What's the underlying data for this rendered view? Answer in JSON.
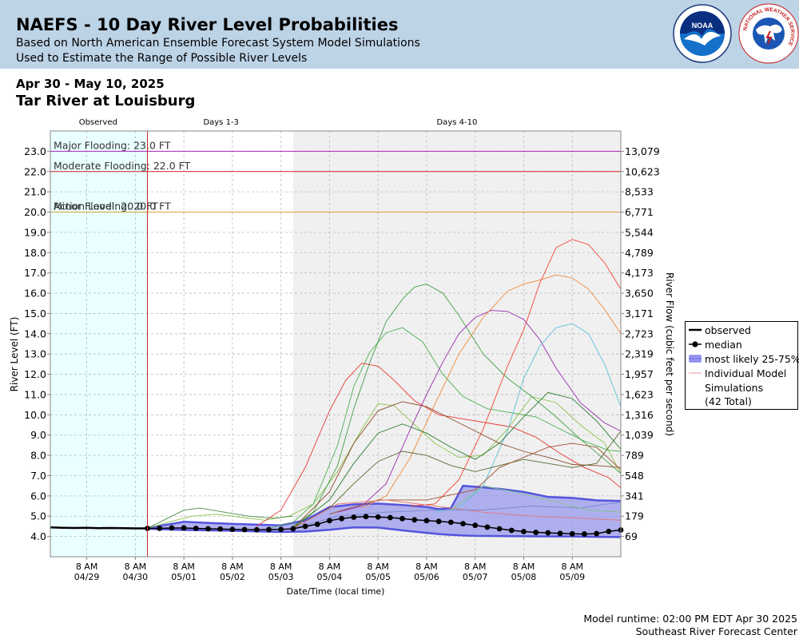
{
  "header": {
    "title": "NAEFS - 10 Day River Level Probabilities",
    "subtitle1": "Based on North American Ensemble Forecast System Model Simulations",
    "subtitle2": "Used to Estimate the Range of Possible River Levels",
    "noaa_logo_text": "NOAA",
    "nws_logo_text": "NATIONAL WEATHER SERVICE"
  },
  "date_range": "Apr 30 - May 10, 2025",
  "station": "Tar River at Louisburg",
  "footer": {
    "runtime": "Model runtime: 02:00 PM EDT Apr 30 2025",
    "center": "Southeast River Forecast Center"
  },
  "legend": {
    "observed": "observed",
    "median": "median",
    "likely": "most likely 25-75%",
    "individual": "Individual Model",
    "individual2": "Simulations",
    "total": "(42 Total)"
  },
  "colors": {
    "header_bg": "#bdd3e6",
    "observed_bg": "#eaffff",
    "days4_10_bg": "#f0f0f0",
    "major": "#aa22bb",
    "moderate": "#d02020",
    "action": "#d8a040",
    "band_fill": "#9999ee",
    "band_edge": "#6666ee"
  },
  "chart_data": {
    "type": "line",
    "title": "Tar River at Louisburg",
    "xlabel": "Date/Time (local time)",
    "ylabel": "River Level (FT)",
    "ylabel_right": "River Flow (cubic feet per second)",
    "ylim": [
      3.0,
      24.0
    ],
    "x_range": [
      "04/28 14:00",
      "05/10 08:00"
    ],
    "section_labels": [
      "Observed",
      "Days 1-3",
      "Days 4-10"
    ],
    "section_starts": [
      "04/28 14:00",
      "04/30 14:00",
      "05/03 14:00"
    ],
    "y_ticks": [
      4,
      5,
      6,
      7,
      8,
      9,
      10,
      11,
      12,
      13,
      14,
      15,
      16,
      17,
      18,
      19,
      20,
      21,
      22,
      23
    ],
    "y_tick_labels": [
      "4.0",
      "5.0",
      "6.0",
      "7.0",
      "8.0",
      "9.0",
      "10.0",
      "11.0",
      "12.0",
      "13.0",
      "14.0",
      "15.0",
      "16.0",
      "17.0",
      "18.0",
      "19.0",
      "20.0",
      "21.0",
      "22.0",
      "23.0"
    ],
    "flow_tick_labels": [
      "69",
      "179",
      "341",
      "548",
      "789",
      "1,039",
      "1,316",
      "1,623",
      "1,957",
      "2,319",
      "2,723",
      "3,171",
      "3,650",
      "4,173",
      "4,789",
      "5,544",
      "6,771",
      "8,533",
      "10,623",
      "13,079"
    ],
    "x_ticks": [
      {
        "t": "04/29 08:00",
        "label1": "8 AM",
        "label2": "04/29"
      },
      {
        "t": "04/30 08:00",
        "label1": "8 AM",
        "label2": "04/30"
      },
      {
        "t": "05/01 08:00",
        "label1": "8 AM",
        "label2": "05/01"
      },
      {
        "t": "05/02 08:00",
        "label1": "8 AM",
        "label2": "05/02"
      },
      {
        "t": "05/03 08:00",
        "label1": "8 AM",
        "label2": "05/03"
      },
      {
        "t": "05/04 08:00",
        "label1": "8 AM",
        "label2": "05/04"
      },
      {
        "t": "05/05 08:00",
        "label1": "8 AM",
        "label2": "05/05"
      },
      {
        "t": "05/06 08:00",
        "label1": "8 AM",
        "label2": "05/06"
      },
      {
        "t": "05/07 08:00",
        "label1": "8 AM",
        "label2": "05/07"
      },
      {
        "t": "05/08 08:00",
        "label1": "8 AM",
        "label2": "05/08"
      },
      {
        "t": "05/09 08:00",
        "label1": "8 AM",
        "label2": "05/09"
      }
    ],
    "thresholds": [
      {
        "name": "Major Flooding: 23.0 FT",
        "value": 23.0,
        "color": "#aa22bb"
      },
      {
        "name": "Moderate Flooding: 22.0 FT",
        "value": 22.0,
        "color": "#d02020"
      },
      {
        "name": "Minor Flooding: 20.0 FT",
        "value": 20.0,
        "color": "#d8a040"
      },
      {
        "name": "Action Level: 20.0 FT",
        "value": 20.0,
        "color": "#d8a040"
      }
    ],
    "observed": {
      "name": "observed",
      "x": [
        "04/28 14:00",
        "04/28 20:00",
        "04/29 02:00",
        "04/29 08:00",
        "04/29 14:00",
        "04/29 20:00",
        "04/30 02:00",
        "04/30 08:00",
        "04/30 14:00"
      ],
      "y": [
        4.45,
        4.43,
        4.42,
        4.43,
        4.41,
        4.42,
        4.41,
        4.4,
        4.4
      ]
    },
    "median": {
      "name": "median",
      "x": [
        "04/30 14:00",
        "04/30 20:00",
        "05/01 02:00",
        "05/01 08:00",
        "05/01 14:00",
        "05/01 20:00",
        "05/02 02:00",
        "05/02 08:00",
        "05/02 14:00",
        "05/02 20:00",
        "05/03 02:00",
        "05/03 08:00",
        "05/03 14:00",
        "05/03 20:00",
        "05/04 02:00",
        "05/04 08:00",
        "05/04 14:00",
        "05/04 20:00",
        "05/05 02:00",
        "05/05 08:00",
        "05/05 14:00",
        "05/05 20:00",
        "05/06 02:00",
        "05/06 08:00",
        "05/06 14:00",
        "05/06 20:00",
        "05/07 02:00",
        "05/07 08:00",
        "05/07 14:00",
        "05/07 20:00",
        "05/08 02:00",
        "05/08 08:00",
        "05/08 14:00",
        "05/08 20:00",
        "05/09 02:00",
        "05/09 08:00",
        "05/09 14:00",
        "05/09 20:00",
        "05/10 02:00",
        "05/10 08:00"
      ],
      "y": [
        4.4,
        4.4,
        4.42,
        4.42,
        4.4,
        4.38,
        4.37,
        4.35,
        4.34,
        4.33,
        4.34,
        4.35,
        4.38,
        4.5,
        4.6,
        4.78,
        4.88,
        4.95,
        4.98,
        4.96,
        4.93,
        4.88,
        4.82,
        4.78,
        4.74,
        4.7,
        4.63,
        4.55,
        4.46,
        4.38,
        4.3,
        4.24,
        4.2,
        4.18,
        4.15,
        4.13,
        4.12,
        4.14,
        4.25,
        4.32
      ]
    },
    "likely_band": {
      "name": "most likely 25-75%",
      "x": [
        "04/30 14:00",
        "05/01 08:00",
        "05/02 08:00",
        "05/03 08:00",
        "05/03 20:00",
        "05/04 08:00",
        "05/04 20:00",
        "05/05 08:00",
        "05/05 20:00",
        "05/06 08:00",
        "05/06 14:00",
        "05/06 20:00",
        "05/07 02:00",
        "05/07 08:00",
        "05/07 20:00",
        "05/08 08:00",
        "05/08 20:00",
        "05/09 08:00",
        "05/09 20:00",
        "05/10 08:00"
      ],
      "upper": [
        4.42,
        4.72,
        4.62,
        4.55,
        4.8,
        5.45,
        5.58,
        5.62,
        5.55,
        5.45,
        5.35,
        5.4,
        6.5,
        6.45,
        6.35,
        6.2,
        5.95,
        5.9,
        5.78,
        5.75
      ],
      "lower": [
        4.38,
        4.32,
        4.28,
        4.22,
        4.24,
        4.33,
        4.45,
        4.44,
        4.3,
        4.18,
        4.12,
        4.08,
        4.05,
        4.03,
        4.02,
        4.01,
        4.0,
        4.0,
        3.98,
        3.97
      ]
    },
    "members_total": 42,
    "members": [
      {
        "color": "#8bc34a",
        "x": [
          "04/30 14:00",
          "05/01 00:00",
          "05/01 12:00",
          "05/02 00:00",
          "05/02 12:00",
          "05/03 00:00",
          "05/03 12:00",
          "05/04 00:00",
          "05/04 12:00",
          "05/05 00:00",
          "05/05 08:00",
          "05/05 16:00",
          "05/06 00:00",
          "05/06 12:00",
          "05/07 00:00",
          "05/07 12:00",
          "05/08 00:00",
          "05/08 12:00",
          "05/09 00:00",
          "05/09 12:00",
          "05/10 00:00",
          "05/10 08:00"
        ],
        "y": [
          4.4,
          4.7,
          5.0,
          5.1,
          4.95,
          4.8,
          5.0,
          5.6,
          7.2,
          9.3,
          10.55,
          10.45,
          9.7,
          8.6,
          7.9,
          8.0,
          9.3,
          10.9,
          10.6,
          9.5,
          8.6,
          7.1
        ]
      },
      {
        "color": "#4caf50",
        "x": [
          "05/03 02:00",
          "05/03 14:00",
          "05/04 00:00",
          "05/04 12:00",
          "05/04 20:00",
          "05/05 04:00",
          "05/05 12:00",
          "05/05 20:00",
          "05/06 06:00",
          "05/06 16:00",
          "05/07 02:00",
          "05/07 14:00",
          "05/08 02:00",
          "05/08 14:00",
          "05/09 02:00",
          "05/09 14:00",
          "05/10 02:00",
          "05/10 08:00"
        ],
        "y": [
          4.4,
          4.7,
          5.6,
          8.5,
          11.4,
          13.1,
          14.05,
          14.3,
          13.6,
          12.0,
          10.9,
          10.3,
          10.1,
          9.9,
          9.3,
          8.7,
          8.25,
          8.2
        ]
      },
      {
        "color": "#e53935",
        "x": [
          "05/02 20:00",
          "05/03 08:00",
          "05/03 20:00",
          "05/04 08:00",
          "05/04 16:00",
          "05/05 00:00",
          "05/05 08:00",
          "05/05 16:00",
          "05/06 02:00",
          "05/06 14:00",
          "05/07 02:00",
          "05/07 14:00",
          "05/08 02:00",
          "05/08 14:00",
          "05/09 02:00",
          "05/09 14:00",
          "05/10 02:00",
          "05/10 08:00"
        ],
        "y": [
          4.5,
          5.3,
          7.4,
          10.2,
          11.7,
          12.55,
          12.4,
          11.7,
          10.7,
          10.0,
          9.8,
          9.6,
          9.4,
          8.9,
          8.1,
          7.4,
          6.9,
          6.4
        ]
      },
      {
        "color": "#43a047",
        "x": [
          "05/03 14:00",
          "05/04 00:00",
          "05/04 12:00",
          "05/04 20:00",
          "05/05 04:00",
          "05/05 12:00",
          "05/05 20:00",
          "05/06 02:00",
          "05/06 08:00",
          "05/06 16:00",
          "05/07 00:00",
          "05/07 12:00",
          "05/08 00:00",
          "05/08 12:00",
          "05/09 00:00",
          "05/09 12:00",
          "05/10 00:00",
          "05/10 08:00"
        ],
        "y": [
          4.5,
          5.2,
          7.5,
          10.3,
          12.6,
          14.6,
          15.7,
          16.3,
          16.45,
          16.0,
          14.9,
          13.0,
          11.8,
          10.9,
          9.9,
          8.8,
          7.8,
          7.1
        ]
      },
      {
        "color": "#9c27b0",
        "x": [
          "05/04 12:00",
          "05/05 00:00",
          "05/05 12:00",
          "05/06 00:00",
          "05/06 08:00",
          "05/06 16:00",
          "05/07 00:00",
          "05/07 08:00",
          "05/07 16:00",
          "05/08 00:00",
          "05/08 08:00",
          "05/08 16:00",
          "05/09 00:00",
          "05/09 12:00",
          "05/10 00:00",
          "05/10 08:00"
        ],
        "y": [
          5.2,
          5.5,
          6.6,
          9.3,
          11.0,
          12.6,
          14.0,
          14.8,
          15.15,
          15.1,
          14.7,
          13.7,
          12.3,
          10.6,
          9.6,
          9.2
        ]
      },
      {
        "color": "#ef8a3b",
        "x": [
          "05/05 00:00",
          "05/05 12:00",
          "05/06 00:00",
          "05/06 12:00",
          "05/07 00:00",
          "05/07 12:00",
          "05/08 00:00",
          "05/08 08:00",
          "05/08 16:00",
          "05/09 00:00",
          "05/09 08:00",
          "05/09 16:00",
          "05/10 00:00",
          "05/10 08:00"
        ],
        "y": [
          5.4,
          6.0,
          7.9,
          10.5,
          13.0,
          14.8,
          16.1,
          16.45,
          16.65,
          16.9,
          16.75,
          16.2,
          15.2,
          14.0
        ]
      },
      {
        "color": "#f44336",
        "x": [
          "05/06 00:00",
          "05/06 12:00",
          "05/07 00:00",
          "05/07 12:00",
          "05/08 00:00",
          "05/08 08:00",
          "05/08 16:00",
          "05/09 00:00",
          "05/09 08:00",
          "05/09 16:00",
          "05/10 00:00",
          "05/10 08:00"
        ],
        "y": [
          5.5,
          5.6,
          6.8,
          9.3,
          12.4,
          14.2,
          16.5,
          18.25,
          18.65,
          18.4,
          17.5,
          16.2
        ]
      },
      {
        "color": "#5bc0d8",
        "x": [
          "05/06 12:00",
          "05/07 00:00",
          "05/07 12:00",
          "05/08 00:00",
          "05/08 08:00",
          "05/08 16:00",
          "05/09 00:00",
          "05/09 08:00",
          "05/09 16:00",
          "05/10 00:00",
          "05/10 08:00"
        ],
        "y": [
          5.2,
          5.4,
          6.5,
          9.2,
          11.8,
          13.4,
          14.3,
          14.5,
          14.0,
          12.5,
          10.4
        ]
      },
      {
        "color": "#8d4b2b",
        "x": [
          "05/03 14:00",
          "05/04 08:00",
          "05/04 20:00",
          "05/05 08:00",
          "05/05 20:00",
          "05/06 08:00",
          "05/06 20:00",
          "05/07 08:00",
          "05/07 20:00",
          "05/08 08:00",
          "05/08 20:00",
          "05/09 08:00",
          "05/09 20:00",
          "05/10 08:00"
        ],
        "y": [
          4.4,
          6.2,
          8.6,
          10.2,
          10.65,
          10.4,
          9.8,
          9.2,
          8.6,
          8.2,
          7.9,
          7.55,
          7.5,
          7.4
        ]
      },
      {
        "color": "#556b2f",
        "x": [
          "05/03 14:00",
          "05/04 08:00",
          "05/04 20:00",
          "05/05 08:00",
          "05/05 20:00",
          "05/06 08:00",
          "05/06 20:00",
          "05/07 08:00",
          "05/07 20:00",
          "05/08 08:00",
          "05/08 20:00",
          "05/09 08:00",
          "05/09 20:00",
          "05/10 08:00"
        ],
        "y": [
          4.4,
          5.4,
          6.6,
          7.7,
          8.2,
          8.0,
          7.5,
          7.2,
          7.5,
          7.8,
          7.6,
          7.4,
          7.6,
          9.2
        ]
      },
      {
        "color": "#2e7d32",
        "x": [
          "05/03 14:00",
          "05/04 08:00",
          "05/04 20:00",
          "05/05 08:00",
          "05/05 20:00",
          "05/06 08:00",
          "05/06 20:00",
          "05/07 08:00",
          "05/07 20:00",
          "05/08 08:00",
          "05/08 20:00",
          "05/09 08:00",
          "05/09 20:00",
          "05/10 08:00"
        ],
        "y": [
          4.4,
          5.8,
          7.6,
          9.1,
          9.55,
          9.1,
          8.4,
          7.8,
          8.6,
          9.9,
          11.1,
          10.8,
          9.7,
          8.3
        ]
      },
      {
        "color": "#a0522d",
        "x": [
          "05/04 08:00",
          "05/05 08:00",
          "05/06 08:00",
          "05/07 08:00",
          "05/07 20:00",
          "05/08 08:00",
          "05/08 20:00",
          "05/09 08:00",
          "05/09 20:00",
          "05/10 08:00"
        ],
        "y": [
          5.1,
          5.8,
          5.8,
          6.3,
          7.4,
          7.9,
          8.4,
          8.6,
          8.4,
          7.3
        ]
      },
      {
        "color": "#4c8c4a",
        "x": [
          "04/30 14:00",
          "05/01 00:00",
          "05/01 08:00",
          "05/01 16:00",
          "05/02 04:00",
          "05/02 16:00",
          "05/03 04:00",
          "05/03 14:00"
        ],
        "y": [
          4.4,
          4.9,
          5.3,
          5.4,
          5.2,
          5.0,
          4.9,
          5.0
        ]
      },
      {
        "color": "#e57373",
        "x": [
          "05/03 14:00",
          "05/04 12:00",
          "05/05 12:00",
          "05/06 12:00",
          "05/07 12:00",
          "05/08 12:00",
          "05/09 12:00",
          "05/10 08:00"
        ],
        "y": [
          4.4,
          5.6,
          5.8,
          5.5,
          5.2,
          5.0,
          4.9,
          4.8
        ]
      },
      {
        "color": "#7986cb",
        "x": [
          "05/03 14:00",
          "05/04 12:00",
          "05/05 12:00",
          "05/06 12:00",
          "05/07 12:00",
          "05/08 12:00",
          "05/09 12:00",
          "05/10 08:00"
        ],
        "y": [
          4.4,
          5.0,
          5.2,
          5.3,
          5.3,
          5.5,
          5.4,
          5.7
        ]
      },
      {
        "color": "#81c784",
        "x": [
          "05/06 20:00",
          "05/07 12:00",
          "05/08 08:00",
          "05/09 00:00",
          "05/09 16:00",
          "05/10 08:00"
        ],
        "y": [
          5.3,
          6.5,
          6.1,
          5.7,
          5.3,
          5.2
        ]
      }
    ]
  }
}
